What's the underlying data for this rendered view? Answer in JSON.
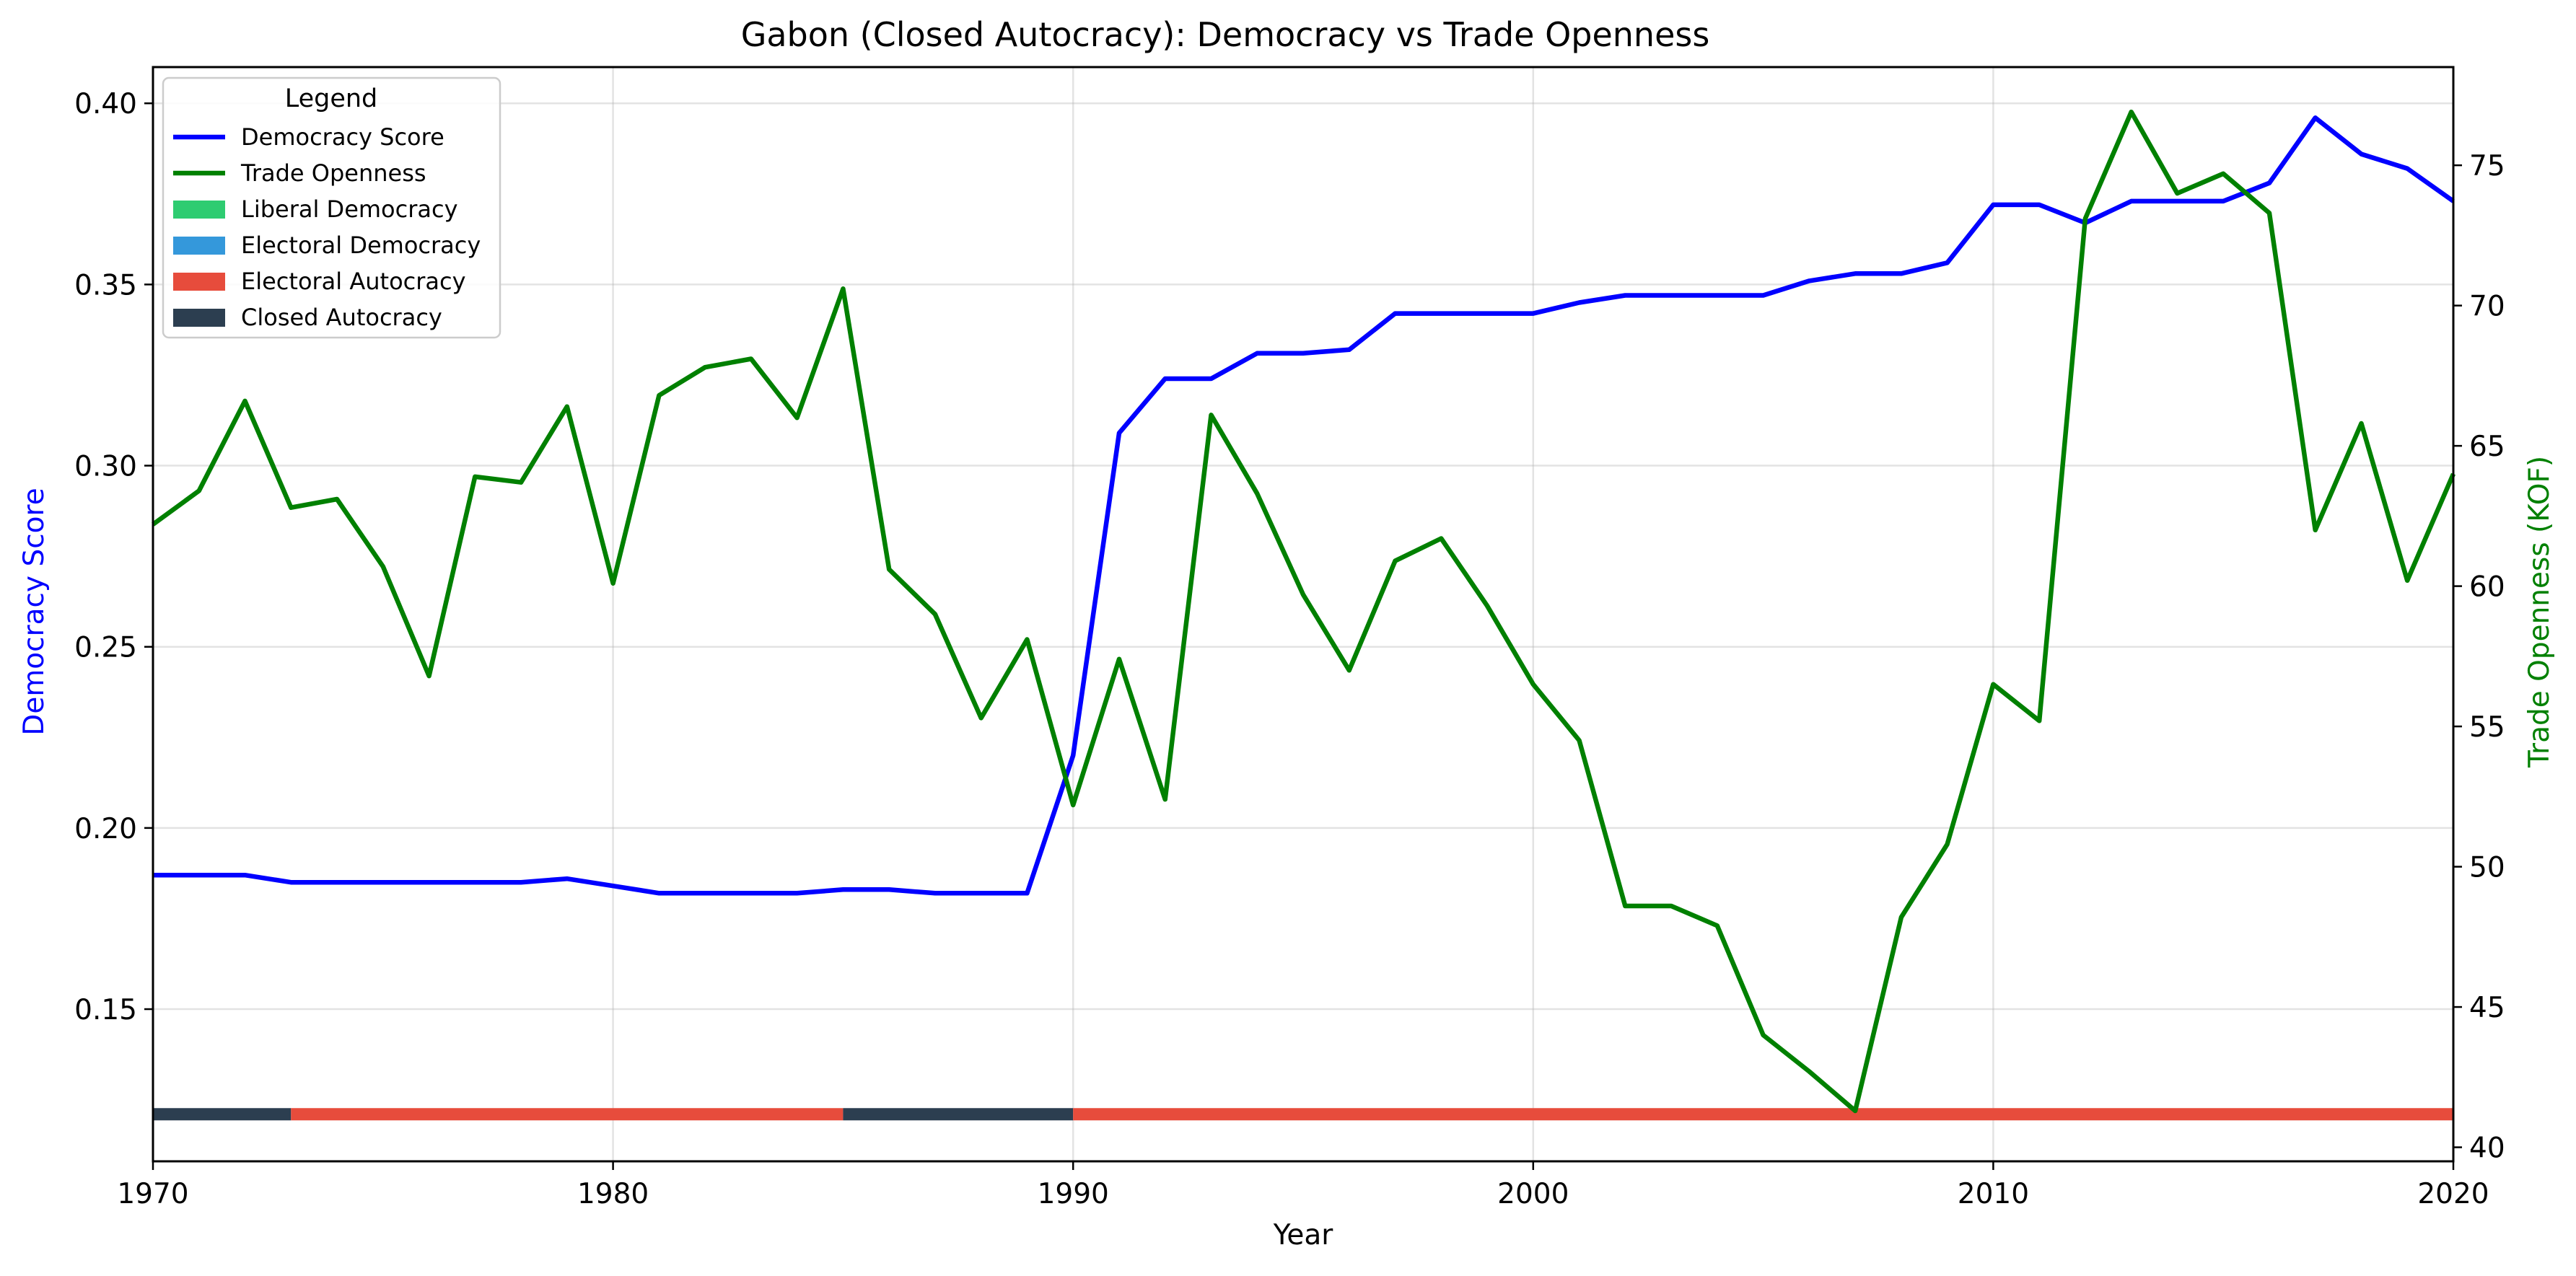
{
  "chart_data": {
    "type": "line",
    "title": "Gabon (Closed Autocracy): Democracy vs Trade Openness",
    "xlabel": "Year",
    "ylabel_left": "Democracy Score",
    "ylabel_right": "Trade Openness (KOF)",
    "xlim": [
      1970,
      2020
    ],
    "ylim_left": [
      0.108,
      0.41
    ],
    "ylim_right": [
      39.5,
      78.5
    ],
    "x_ticks": [
      1970,
      1980,
      1990,
      2000,
      2010,
      2020
    ],
    "y_left_ticks": [
      "0.15",
      "0.20",
      "0.25",
      "0.30",
      "0.35",
      "0.40"
    ],
    "y_right_ticks": [
      "40",
      "45",
      "50",
      "55",
      "60",
      "65",
      "70",
      "75"
    ],
    "grid": true,
    "legend": {
      "title": "Legend",
      "position": "top-left",
      "entries": [
        {
          "label": "Democracy Score",
          "kind": "line",
          "color": "#0000ff"
        },
        {
          "label": "Trade Openness",
          "kind": "line",
          "color": "#008000"
        },
        {
          "label": "Liberal Democracy",
          "kind": "patch",
          "color": "#2ecc71"
        },
        {
          "label": "Electoral Democracy",
          "kind": "patch",
          "color": "#3498db"
        },
        {
          "label": "Electoral Autocracy",
          "kind": "patch",
          "color": "#e74c3c"
        },
        {
          "label": "Closed Autocracy",
          "kind": "patch",
          "color": "#2c3e50"
        }
      ]
    },
    "x": [
      1970,
      1971,
      1972,
      1973,
      1974,
      1975,
      1976,
      1977,
      1978,
      1979,
      1980,
      1981,
      1982,
      1983,
      1984,
      1985,
      1986,
      1987,
      1988,
      1989,
      1990,
      1991,
      1992,
      1993,
      1994,
      1995,
      1996,
      1997,
      1998,
      1999,
      2000,
      2001,
      2002,
      2003,
      2004,
      2005,
      2006,
      2007,
      2008,
      2009,
      2010,
      2011,
      2012,
      2013,
      2014,
      2015,
      2016,
      2017,
      2018,
      2019,
      2020
    ],
    "series": [
      {
        "name": "Democracy Score",
        "axis": "left",
        "color": "#0000ff",
        "values": [
          0.187,
          0.187,
          0.187,
          0.185,
          0.185,
          0.185,
          0.185,
          0.185,
          0.185,
          0.186,
          0.184,
          0.182,
          0.182,
          0.182,
          0.182,
          0.183,
          0.183,
          0.182,
          0.182,
          0.182,
          0.22,
          0.309,
          0.324,
          0.324,
          0.331,
          0.331,
          0.332,
          0.342,
          0.342,
          0.342,
          0.342,
          0.345,
          0.347,
          0.347,
          0.347,
          0.347,
          0.351,
          0.353,
          0.353,
          0.356,
          0.372,
          0.372,
          0.367,
          0.373,
          0.373,
          0.373,
          0.378,
          0.396,
          0.386,
          0.382,
          0.373
        ]
      },
      {
        "name": "Trade Openness",
        "axis": "right",
        "color": "#008000",
        "values": [
          62.2,
          63.4,
          66.6,
          62.8,
          63.1,
          60.7,
          56.8,
          63.9,
          63.7,
          66.4,
          60.1,
          66.8,
          67.8,
          68.1,
          66.0,
          70.6,
          60.6,
          59.0,
          55.3,
          58.1,
          52.2,
          57.4,
          52.4,
          66.1,
          63.3,
          59.7,
          57.0,
          60.9,
          61.7,
          59.3,
          56.5,
          54.5,
          48.6,
          48.6,
          47.9,
          44.0,
          42.7,
          41.3,
          48.2,
          50.8,
          56.5,
          55.2,
          73.1,
          76.9,
          74.0,
          74.7,
          73.3,
          62.0,
          65.8,
          60.2,
          64.0
        ]
      }
    ],
    "regime_segments": [
      {
        "label": "Closed Autocracy",
        "start": 1970,
        "end": 1973,
        "color": "#2c3e50"
      },
      {
        "label": "Electoral Autocracy",
        "start": 1973,
        "end": 1985,
        "color": "#e74c3c"
      },
      {
        "label": "Closed Autocracy",
        "start": 1985,
        "end": 1990,
        "color": "#2c3e50"
      },
      {
        "label": "Electoral Autocracy",
        "start": 1990,
        "end": 2020,
        "color": "#e74c3c"
      }
    ],
    "regime_band_level": 0.121
  }
}
